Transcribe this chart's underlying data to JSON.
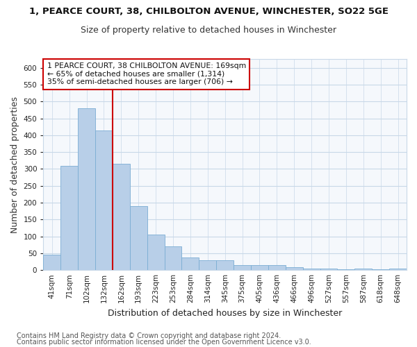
{
  "title": "1, PEARCE COURT, 38, CHILBOLTON AVENUE, WINCHESTER, SO22 5GE",
  "subtitle": "Size of property relative to detached houses in Winchester",
  "xlabel": "Distribution of detached houses by size in Winchester",
  "ylabel": "Number of detached properties",
  "categories": [
    "41sqm",
    "71sqm",
    "102sqm",
    "132sqm",
    "162sqm",
    "193sqm",
    "223sqm",
    "253sqm",
    "284sqm",
    "314sqm",
    "345sqm",
    "375sqm",
    "405sqm",
    "436sqm",
    "466sqm",
    "496sqm",
    "527sqm",
    "557sqm",
    "587sqm",
    "618sqm",
    "648sqm"
  ],
  "values": [
    45,
    310,
    480,
    415,
    315,
    190,
    105,
    70,
    37,
    30,
    30,
    15,
    15,
    15,
    8,
    5,
    5,
    2,
    5,
    2,
    5
  ],
  "bar_color": "#b8cfe8",
  "bar_edge_color": "#7aadd4",
  "highlight_index": 4,
  "highlight_line_color": "#cc0000",
  "ylim": [
    0,
    625
  ],
  "yticks": [
    0,
    50,
    100,
    150,
    200,
    250,
    300,
    350,
    400,
    450,
    500,
    550,
    600
  ],
  "annotation_text": "1 PEARCE COURT, 38 CHILBOLTON AVENUE: 169sqm\n← 65% of detached houses are smaller (1,314)\n35% of semi-detached houses are larger (706) →",
  "annotation_box_color": "#ffffff",
  "annotation_box_edgecolor": "#cc0000",
  "footer1": "Contains HM Land Registry data © Crown copyright and database right 2024.",
  "footer2": "Contains public sector information licensed under the Open Government Licence v3.0.",
  "bg_color": "#ffffff",
  "plot_bg_color": "#f5f8fc",
  "title_fontsize": 9.5,
  "subtitle_fontsize": 9,
  "label_fontsize": 9,
  "tick_fontsize": 7.5,
  "annot_fontsize": 7.8,
  "footer_fontsize": 7,
  "grid_color": "#c8d8e8",
  "title_color": "#111111",
  "subtitle_color": "#333333",
  "ylabel_color": "#333333"
}
